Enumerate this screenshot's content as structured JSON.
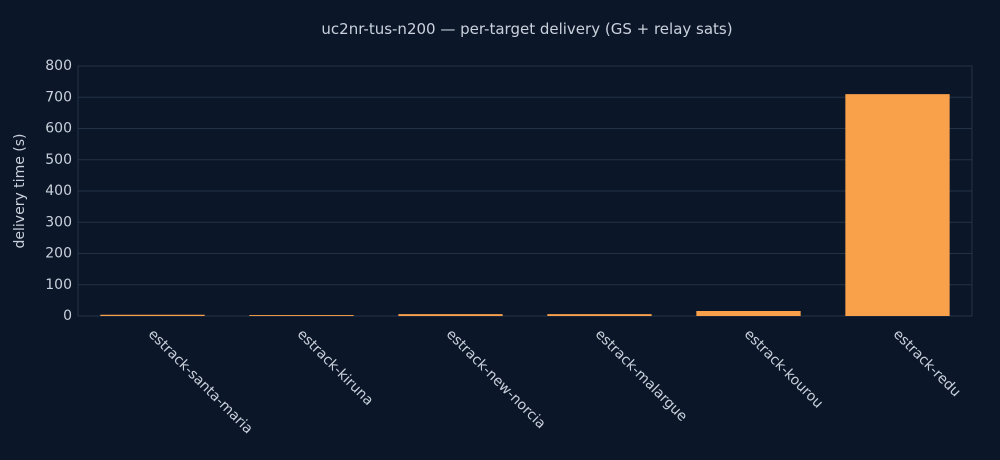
{
  "chart_data": {
    "type": "bar",
    "title": "uc2nr-tus-n200 — per-target delivery (GS + relay sats)",
    "y_label": "delivery time (s)",
    "categories": [
      "estrack-santa-maria",
      "estrack-kiruna",
      "estrack-new-norcia",
      "estrack-malargue",
      "estrack-kourou",
      "estrack-redu"
    ],
    "values": [
      4,
      3,
      6,
      6,
      16,
      710
    ],
    "color": "#f9a04a",
    "ylim": [
      0,
      800
    ],
    "yticks": [
      0,
      100,
      200,
      300,
      400,
      500,
      600,
      700,
      800
    ],
    "grid": true
  }
}
